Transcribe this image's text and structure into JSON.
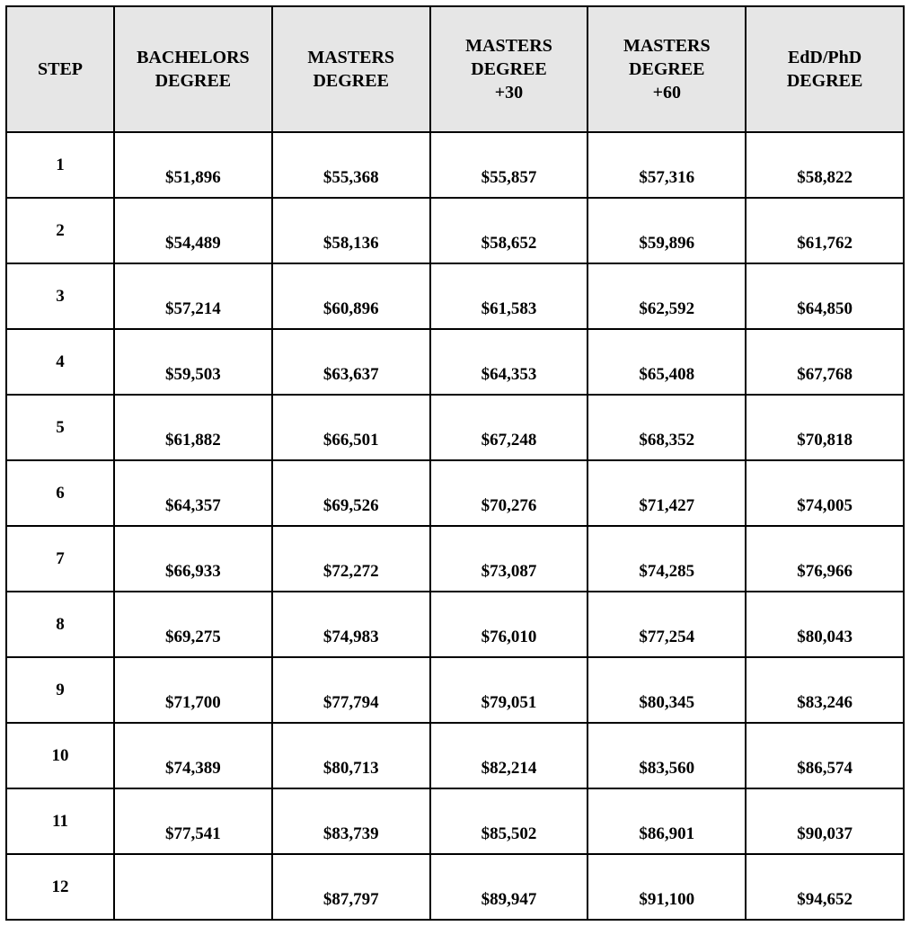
{
  "table": {
    "type": "table",
    "header_bg": "#e6e6e6",
    "border_color": "#000000",
    "columns": [
      "STEP",
      "BACHELORS\nDEGREE",
      "MASTERS\nDEGREE",
      "MASTERS\nDEGREE\n+30",
      "MASTERS\nDEGREE\n+60",
      "EdD/PhD\nDEGREE"
    ],
    "rows": [
      {
        "step": "1",
        "cells": [
          "$51,896",
          "$55,368",
          "$55,857",
          "$57,316",
          "$58,822"
        ]
      },
      {
        "step": "2",
        "cells": [
          "$54,489",
          "$58,136",
          "$58,652",
          "$59,896",
          "$61,762"
        ]
      },
      {
        "step": "3",
        "cells": [
          "$57,214",
          "$60,896",
          "$61,583",
          "$62,592",
          "$64,850"
        ]
      },
      {
        "step": "4",
        "cells": [
          "$59,503",
          "$63,637",
          "$64,353",
          "$65,408",
          "$67,768"
        ]
      },
      {
        "step": "5",
        "cells": [
          "$61,882",
          "$66,501",
          "$67,248",
          "$68,352",
          "$70,818"
        ]
      },
      {
        "step": "6",
        "cells": [
          "$64,357",
          "$69,526",
          "$70,276",
          "$71,427",
          "$74,005"
        ]
      },
      {
        "step": "7",
        "cells": [
          "$66,933",
          "$72,272",
          "$73,087",
          "$74,285",
          "$76,966"
        ]
      },
      {
        "step": "8",
        "cells": [
          "$69,275",
          "$74,983",
          "$76,010",
          "$77,254",
          "$80,043"
        ]
      },
      {
        "step": "9",
        "cells": [
          "$71,700",
          "$77,794",
          "$79,051",
          "$80,345",
          "$83,246"
        ]
      },
      {
        "step": "10",
        "cells": [
          "$74,389",
          "$80,713",
          "$82,214",
          "$83,560",
          "$86,574"
        ]
      },
      {
        "step": "11",
        "cells": [
          "$77,541",
          "$83,739",
          "$85,502",
          "$86,901",
          "$90,037"
        ]
      },
      {
        "step": "12",
        "cells": [
          "",
          "$87,797",
          "$89,947",
          "$91,100",
          "$94,652"
        ]
      }
    ]
  }
}
